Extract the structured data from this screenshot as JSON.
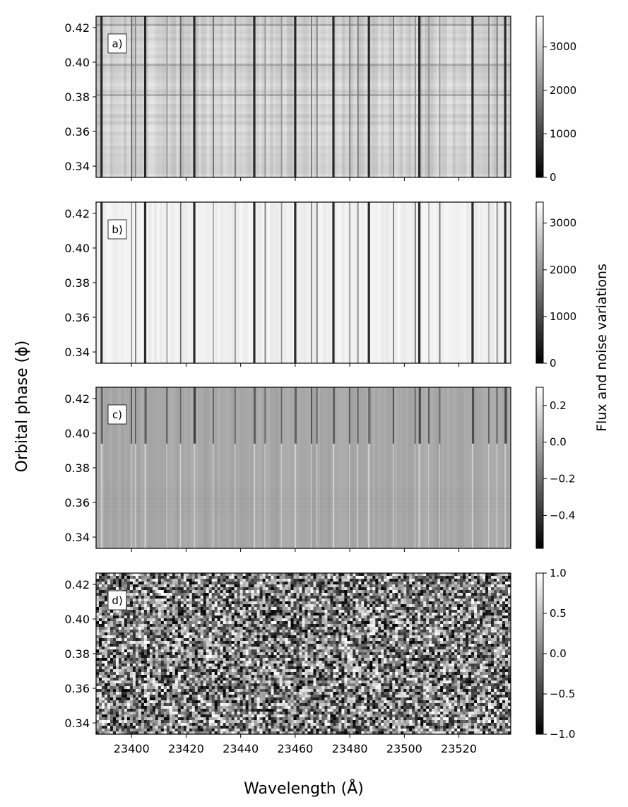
{
  "figure": {
    "ylabel": "Orbital phase (ϕ)",
    "xlabel": "Wavelength (Å)",
    "colorbar_label": "Flux and noise variations"
  },
  "chart_data": [
    {
      "type": "heatmap",
      "panel_label": "a)",
      "xlim": [
        23387,
        23539
      ],
      "ylim": [
        0.3335,
        0.4265
      ],
      "x_ticks": [
        23400,
        23420,
        23440,
        23460,
        23480,
        23500,
        23520
      ],
      "y_ticks": [
        0.34,
        0.36,
        0.38,
        0.4,
        0.42
      ],
      "y_tick_labels": [
        "0.34",
        "0.36",
        "0.38",
        "0.40",
        "0.42"
      ],
      "x_tick_labels_shown": false,
      "colormap": "gray",
      "colorbar": {
        "range": [
          0,
          3700
        ],
        "ticks": [
          0,
          1000,
          2000,
          3000
        ],
        "tick_labels": [
          "0",
          "1000",
          "2000",
          "3000"
        ]
      },
      "background_level": 3150,
      "line_positions": [
        23389,
        23400,
        23401.5,
        23405,
        23413,
        23418,
        23423,
        23430,
        23438,
        23445,
        23449,
        23455,
        23460,
        23466,
        23468,
        23474,
        23480,
        23483,
        23487,
        23496,
        23504,
        23505.5,
        23509,
        23513,
        23525,
        23531,
        23534,
        23537
      ]
    },
    {
      "type": "heatmap",
      "panel_label": "b)",
      "xlim": [
        23387,
        23539
      ],
      "ylim": [
        0.3335,
        0.4265
      ],
      "x_ticks": [
        23400,
        23420,
        23440,
        23460,
        23480,
        23500,
        23520
      ],
      "y_ticks": [
        0.34,
        0.36,
        0.38,
        0.4,
        0.42
      ],
      "y_tick_labels": [
        "0.34",
        "0.36",
        "0.38",
        "0.40",
        "0.42"
      ],
      "x_tick_labels_shown": false,
      "colormap": "gray",
      "colorbar": {
        "range": [
          0,
          3450
        ],
        "ticks": [
          0,
          1000,
          2000,
          3000
        ],
        "tick_labels": [
          "0",
          "1000",
          "2000",
          "3000"
        ]
      },
      "background_level": 3250,
      "line_positions": [
        23389,
        23400,
        23401.5,
        23405,
        23413,
        23418,
        23423,
        23430,
        23438,
        23445,
        23449,
        23455,
        23460,
        23466,
        23468,
        23474,
        23480,
        23483,
        23487,
        23496,
        23504,
        23505.5,
        23509,
        23513,
        23525,
        23531,
        23534,
        23537
      ]
    },
    {
      "type": "heatmap",
      "panel_label": "c)",
      "xlim": [
        23387,
        23539
      ],
      "ylim": [
        0.3335,
        0.4265
      ],
      "x_ticks": [
        23400,
        23420,
        23440,
        23460,
        23480,
        23500,
        23520
      ],
      "y_ticks": [
        0.34,
        0.36,
        0.38,
        0.4,
        0.42
      ],
      "y_tick_labels": [
        "0.34",
        "0.36",
        "0.38",
        "0.40",
        "0.42"
      ],
      "x_tick_labels_shown": false,
      "colormap": "gray",
      "colorbar": {
        "range": [
          -0.58,
          0.3
        ],
        "ticks": [
          -0.4,
          -0.2,
          0.0,
          0.2
        ],
        "tick_labels": [
          "−0.4",
          "−0.2",
          "0.0",
          "0.2"
        ]
      },
      "background_level": 0.0,
      "line_positions": [
        23389,
        23400,
        23401.5,
        23405,
        23413,
        23418,
        23423,
        23430,
        23438,
        23445,
        23449,
        23455,
        23460,
        23466,
        23468,
        23474,
        23480,
        23483,
        23487,
        23496,
        23504,
        23505.5,
        23509,
        23513,
        23525,
        23531,
        23534,
        23537
      ]
    },
    {
      "type": "heatmap",
      "panel_label": "d)",
      "xlim": [
        23387,
        23539
      ],
      "ylim": [
        0.3335,
        0.4265
      ],
      "x_ticks": [
        23400,
        23420,
        23440,
        23460,
        23480,
        23500,
        23520
      ],
      "x_tick_labels": [
        "23400",
        "23420",
        "23440",
        "23460",
        "23480",
        "23500",
        "23520"
      ],
      "y_ticks": [
        0.34,
        0.36,
        0.38,
        0.4,
        0.42
      ],
      "y_tick_labels": [
        "0.34",
        "0.36",
        "0.38",
        "0.40",
        "0.42"
      ],
      "x_tick_labels_shown": true,
      "colormap": "gray",
      "colorbar": {
        "range": [
          -1.0,
          1.0
        ],
        "ticks": [
          -1.0,
          -0.5,
          0.0,
          0.5,
          1.0
        ],
        "tick_labels": [
          "−1.0",
          "−0.5",
          "0.0",
          "0.5",
          "1.0"
        ]
      },
      "background_level": 0.0,
      "line_positions": []
    }
  ]
}
